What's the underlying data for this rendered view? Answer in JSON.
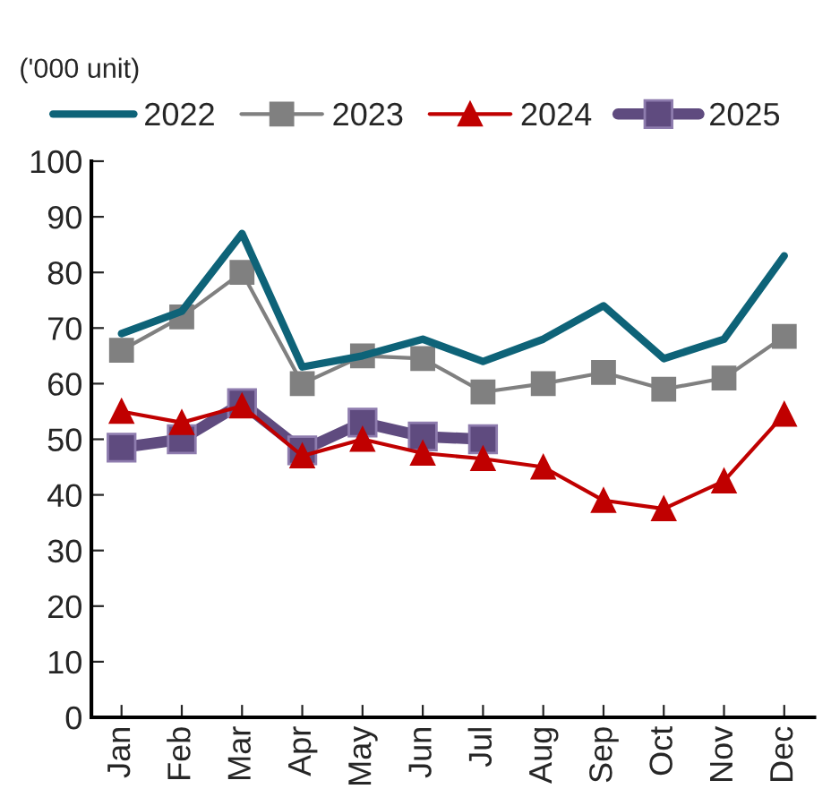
{
  "chart_data": {
    "type": "line",
    "ylabel": "('000 unit)",
    "categories": [
      "Jan",
      "Feb",
      "Mar",
      "Apr",
      "May",
      "Jun",
      "Jul",
      "Aug",
      "Sep",
      "Oct",
      "Nov",
      "Dec"
    ],
    "series": [
      {
        "name": "2022",
        "color": "#0e6378",
        "marker": "none",
        "values": [
          69,
          73,
          87,
          63,
          65,
          68,
          64,
          68,
          74,
          64.5,
          68,
          83
        ]
      },
      {
        "name": "2023",
        "color": "#808080",
        "marker": "square",
        "values": [
          66,
          72,
          80,
          60,
          65,
          64.5,
          58.5,
          60,
          62,
          59,
          61,
          68.5
        ]
      },
      {
        "name": "2024",
        "color": "#c00000",
        "marker": "triangle",
        "values": [
          55,
          53,
          56,
          47,
          50,
          47.5,
          46.5,
          45,
          39,
          37.5,
          42.5,
          54.5
        ]
      },
      {
        "name": "2025",
        "color": "#5f4b7f",
        "marker": "square",
        "values": [
          48.5,
          50,
          56.5,
          48,
          53,
          50.5,
          50,
          null,
          null,
          null,
          null,
          null
        ]
      }
    ],
    "ylim": [
      0,
      100
    ],
    "yticks": [
      0,
      10,
      20,
      30,
      40,
      50,
      60,
      70,
      80,
      90,
      100
    ],
    "grid": false,
    "legend": "top"
  }
}
